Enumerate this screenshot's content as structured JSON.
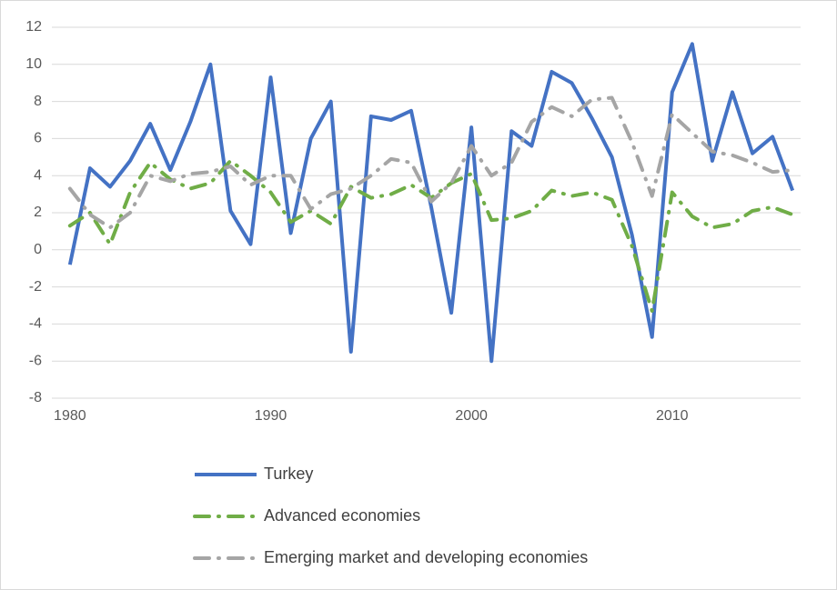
{
  "chart_data": {
    "type": "line",
    "x": [
      1980,
      1981,
      1982,
      1983,
      1984,
      1985,
      1986,
      1987,
      1988,
      1989,
      1990,
      1991,
      1992,
      1993,
      1994,
      1995,
      1996,
      1997,
      1998,
      1999,
      2000,
      2001,
      2002,
      2003,
      2004,
      2005,
      2006,
      2007,
      2008,
      2009,
      2010,
      2011,
      2012,
      2013,
      2014,
      2015,
      2016
    ],
    "series": [
      {
        "name": "Turkey",
        "color": "#4472c4",
        "style": "solid",
        "values": [
          -0.8,
          4.4,
          3.4,
          4.8,
          6.8,
          4.3,
          6.9,
          10.0,
          2.1,
          0.3,
          9.3,
          0.9,
          6.0,
          8.0,
          -5.5,
          7.2,
          7.0,
          7.5,
          2.3,
          -3.4,
          6.6,
          -6.0,
          6.4,
          5.6,
          9.6,
          9.0,
          7.1,
          5.0,
          0.8,
          -4.7,
          8.5,
          11.1,
          4.8,
          8.5,
          5.2,
          6.1,
          3.2
        ]
      },
      {
        "name": "Advanced economies",
        "color": "#70ad47",
        "style": "dashdot",
        "values": [
          1.3,
          2.0,
          0.3,
          3.1,
          4.7,
          3.8,
          3.3,
          3.6,
          4.8,
          4.0,
          3.1,
          1.5,
          2.1,
          1.4,
          3.4,
          2.8,
          3.0,
          3.5,
          2.8,
          3.6,
          4.1,
          1.6,
          1.7,
          2.1,
          3.2,
          2.9,
          3.1,
          2.7,
          0.2,
          -3.3,
          3.1,
          1.8,
          1.2,
          1.4,
          2.1,
          2.3,
          1.9
        ]
      },
      {
        "name": "Emerging market and developing economies",
        "color": "#a5a5a5",
        "style": "dashdot",
        "values": [
          3.3,
          1.9,
          1.2,
          2.0,
          4.0,
          3.7,
          4.1,
          4.2,
          4.5,
          3.5,
          4.0,
          4.0,
          2.2,
          3.0,
          3.3,
          4.0,
          4.9,
          4.7,
          2.6,
          3.6,
          5.6,
          4.0,
          4.7,
          6.9,
          7.7,
          7.2,
          8.1,
          8.2,
          5.8,
          2.9,
          7.3,
          6.3,
          5.3,
          5.1,
          4.7,
          4.2,
          4.3
        ]
      }
    ],
    "xlim": [
      1979.1,
      2016.4
    ],
    "xticks": [
      1980,
      1990,
      2000,
      2010
    ],
    "ylim": [
      -8,
      12
    ],
    "yticks": [
      -8,
      -6,
      -4,
      -2,
      0,
      2,
      4,
      6,
      8,
      10,
      12
    ],
    "grid": true,
    "legend": "bottom"
  }
}
